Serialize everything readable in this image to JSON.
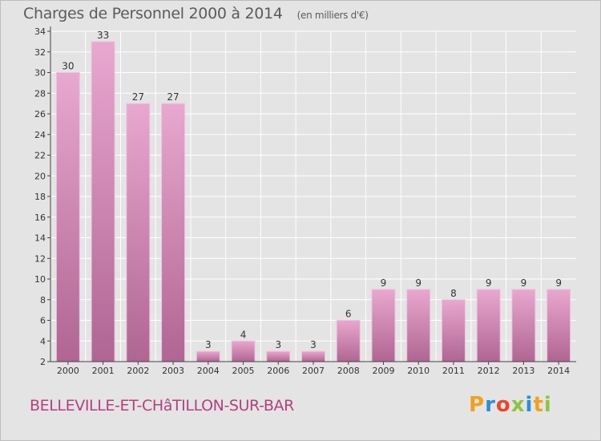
{
  "header": {
    "title": "Charges de Personnel 2000 à 2014",
    "subtitle": "(en milliers d'€)"
  },
  "footer": {
    "commune": "BELLEVILLE-ET-CHâTILLON-SUR-BAR",
    "logo_letters": [
      "P",
      "r",
      "o",
      "x",
      "i",
      "t",
      "i"
    ],
    "logo_colors": [
      "#f0a21e",
      "#2a8fd6",
      "#e64a2e",
      "#8cc63f",
      "#2a8fd6",
      "#f0a21e",
      "#8cc63f"
    ]
  },
  "colors": {
    "bar_fill_top": "#e8a8cf",
    "bar_fill_bottom": "#b06592",
    "bar_stroke": "#f0c4de",
    "axis": "#444444",
    "grid": "#ffffff",
    "background": "#e4e4e4"
  },
  "chart_data": {
    "type": "bar",
    "title": "Charges de Personnel 2000 à 2014",
    "subtitle": "(en milliers d'€)",
    "xlabel": "",
    "ylabel": "",
    "categories": [
      "2000",
      "2001",
      "2002",
      "2003",
      "2004",
      "2005",
      "2006",
      "2007",
      "2008",
      "2009",
      "2010",
      "2011",
      "2012",
      "2013",
      "2014"
    ],
    "values": [
      30,
      33,
      27,
      27,
      3,
      4,
      3,
      3,
      6,
      9,
      9,
      8,
      9,
      9,
      9
    ],
    "ylim": [
      2,
      34
    ],
    "yticks": [
      2,
      4,
      6,
      8,
      10,
      12,
      14,
      16,
      18,
      20,
      22,
      24,
      26,
      28,
      30,
      32,
      34
    ],
    "grid": true,
    "legend": "none"
  }
}
